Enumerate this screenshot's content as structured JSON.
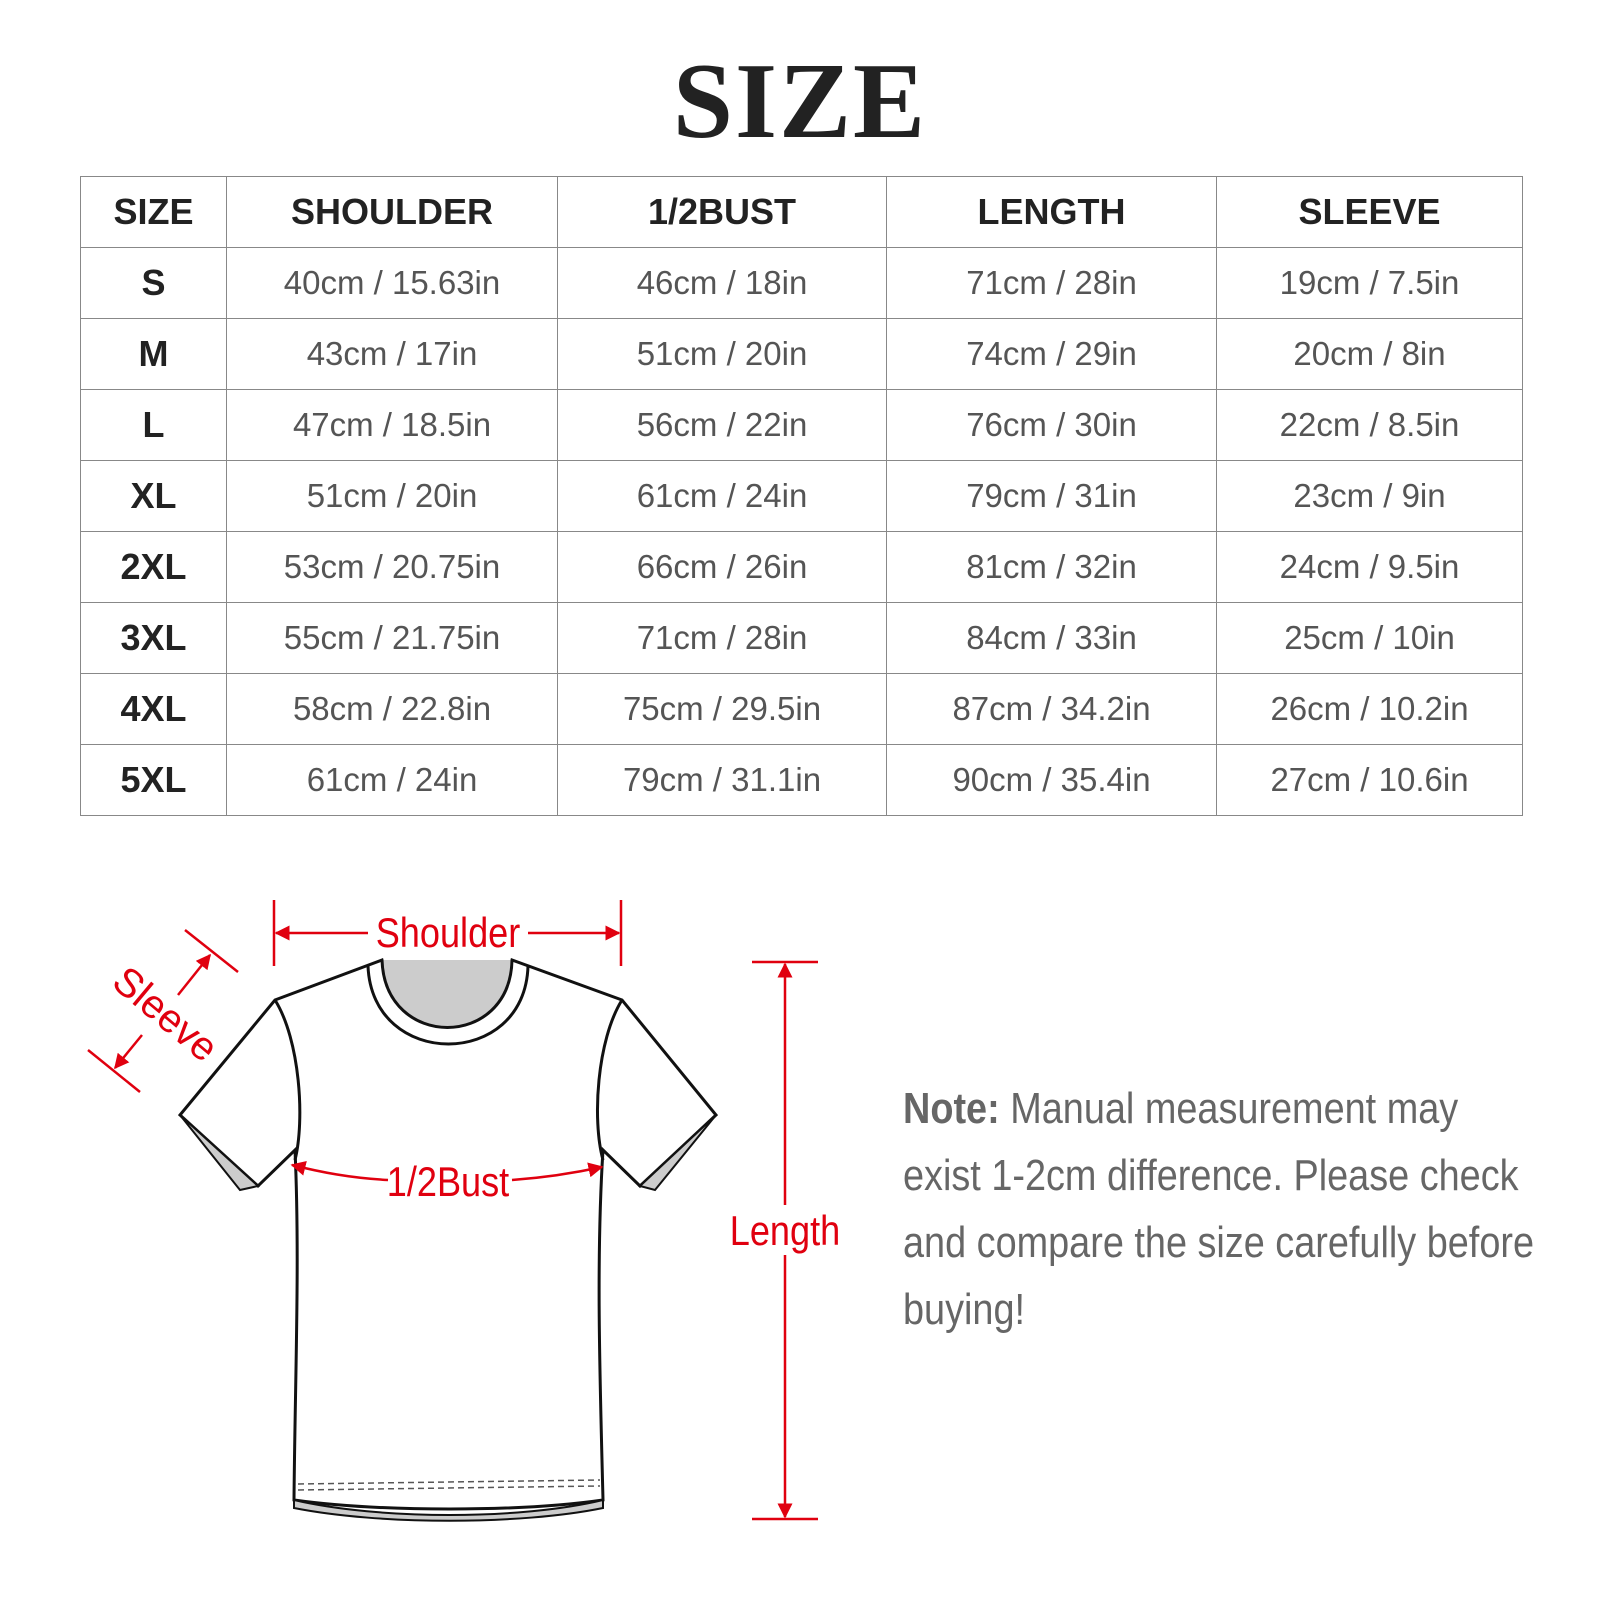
{
  "title": "SIZE",
  "table": {
    "headers": [
      "SIZE",
      "SHOULDER",
      "1/2BUST",
      "LENGTH",
      "SLEEVE"
    ],
    "rows": [
      [
        "S",
        "40cm / 15.63in",
        "46cm / 18in",
        "71cm / 28in",
        "19cm / 7.5in"
      ],
      [
        "M",
        "43cm / 17in",
        "51cm / 20in",
        "74cm / 29in",
        "20cm / 8in"
      ],
      [
        "L",
        "47cm / 18.5in",
        "56cm / 22in",
        "76cm / 30in",
        "22cm / 8.5in"
      ],
      [
        "XL",
        "51cm / 20in",
        "61cm / 24in",
        "79cm / 31in",
        "23cm / 9in"
      ],
      [
        "2XL",
        "53cm / 20.75in",
        "66cm / 26in",
        "81cm / 32in",
        "24cm / 9.5in"
      ],
      [
        "3XL",
        "55cm / 21.75in",
        "71cm / 28in",
        "84cm / 33in",
        "25cm / 10in"
      ],
      [
        "4XL",
        "58cm / 22.8in",
        "75cm / 29.5in",
        "87cm / 34.2in",
        "26cm / 10.2in"
      ],
      [
        "5XL",
        "61cm / 24in",
        "79cm / 31.1in",
        "90cm / 35.4in",
        "27cm / 10.6in"
      ]
    ]
  },
  "diagram": {
    "labels": {
      "shoulder": "Shoulder",
      "sleeve": "Sleeve",
      "bust": "1/2Bust",
      "length": "Length"
    },
    "accent_color": "#e0000f"
  },
  "note": {
    "label": "Note:",
    "text": "Manual measurement may exist 1-2cm difference. Please check and compare the size carefully before buying!"
  }
}
